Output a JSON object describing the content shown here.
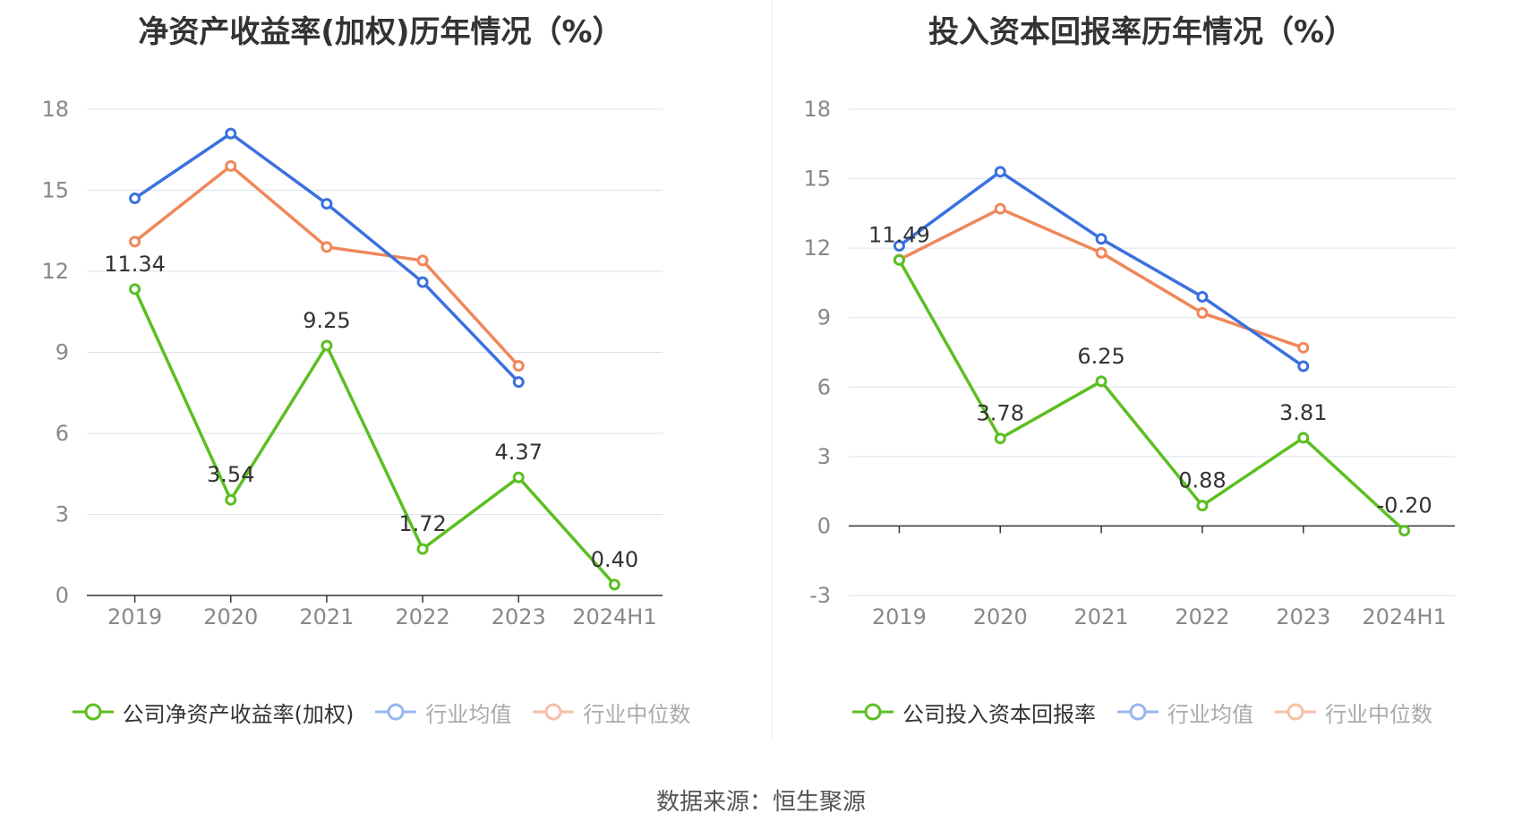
{
  "source_label": "数据来源：恒生聚源",
  "colors": {
    "company": "#5bbf21",
    "avg": "#3a70de",
    "median": "#f0875a",
    "avg_legend": "#99b6ef",
    "median_legend": "#f6c0a7",
    "grid": "#dde3ee",
    "axis": "#333333",
    "tick_text": "#888888",
    "label_text": "#333333"
  },
  "chart_data": [
    {
      "type": "line",
      "title": "净资产收益率(加权)历年情况（%）",
      "categories": [
        "2019",
        "2020",
        "2021",
        "2022",
        "2023",
        "2024H1"
      ],
      "ylim": [
        0,
        18
      ],
      "yticks": [
        "0",
        "3",
        "6",
        "9",
        "12",
        "15",
        "18"
      ],
      "grid": true,
      "legend_position": "bottom",
      "series": [
        {
          "key": "company",
          "name": "公司净资产收益率(加权)",
          "values": [
            11.34,
            3.54,
            9.25,
            1.72,
            4.37,
            0.4
          ],
          "data_labels": [
            "11.34",
            "3.54",
            "9.25",
            "1.72",
            "4.37",
            "0.40"
          ]
        },
        {
          "key": "avg",
          "name": "行业均值",
          "values": [
            14.7,
            17.1,
            14.5,
            11.6,
            7.9,
            null
          ]
        },
        {
          "key": "median",
          "name": "行业中位数",
          "values": [
            13.1,
            15.9,
            12.9,
            12.4,
            8.5,
            null
          ]
        }
      ]
    },
    {
      "type": "line",
      "title": "投入资本回报率历年情况（%）",
      "categories": [
        "2019",
        "2020",
        "2021",
        "2022",
        "2023",
        "2024H1"
      ],
      "ylim": [
        -3,
        18
      ],
      "yticks": [
        "-3",
        "0",
        "3",
        "6",
        "9",
        "12",
        "15",
        "18"
      ],
      "grid": true,
      "legend_position": "bottom",
      "series": [
        {
          "key": "company",
          "name": "公司投入资本回报率",
          "values": [
            11.49,
            3.78,
            6.25,
            0.88,
            3.81,
            -0.2
          ],
          "data_labels": [
            "11.49",
            "3.78",
            "6.25",
            "0.88",
            "3.81",
            "-0.20"
          ]
        },
        {
          "key": "avg",
          "name": "行业均值",
          "values": [
            12.1,
            15.3,
            12.4,
            9.9,
            6.9,
            null
          ]
        },
        {
          "key": "median",
          "name": "行业中位数",
          "values": [
            11.5,
            13.7,
            11.8,
            9.2,
            7.7,
            null
          ]
        }
      ]
    }
  ]
}
